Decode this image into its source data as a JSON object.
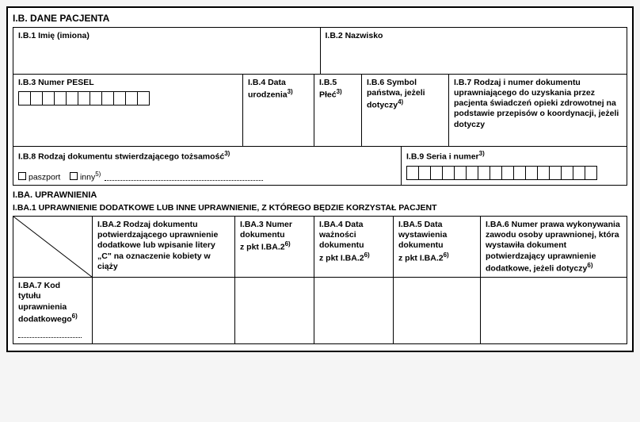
{
  "ib": {
    "title": "I.B. DANE PACJENTA",
    "b1": "I.B.1 Imię (imiona)",
    "b2": "I.B.2 Nazwisko",
    "b3": "I.B.3 Numer PESEL",
    "b4_a": "I.B.4 Data",
    "b4_b": "urodzenia",
    "b4_sup": "3)",
    "b5_a": "I.B.5",
    "b5_b": "Płeć",
    "b5_sup": "3)",
    "b6_a": "I.B.6 Symbol",
    "b6_b": "państwa, jeżeli",
    "b6_c": "dotyczy",
    "b6_sup": "4)",
    "b7": "I.B.7 Rodzaj i numer dokumentu uprawniającego do uzyskania przez pacjenta świadczeń opieki zdrowotnej na podstawie przepisów o koordynacji, jeżeli dotyczy",
    "b8": "I.B.8 Rodzaj dokumentu stwierdzającego tożsamość",
    "b8_sup": "3)",
    "b8_opt1": "paszport",
    "b8_opt2": "inny",
    "b8_opt2_sup": "5)",
    "b9": "I.B.9 Seria i numer",
    "b9_sup": "3)",
    "pesel_cells": 11,
    "seria_cells": 16
  },
  "iba": {
    "title": "I.BA. UPRAWNIENIA",
    "subtitle": "I.BA.1 UPRAWNIENIE DODATKOWE LUB INNE UPRAWNIENIE, Z KTÓREGO BĘDZIE KORZYSTAŁ PACJENT",
    "c2": "I.BA.2 Rodzaj dokumentu potwierdzającego uprawnienie dodatkowe lub wpisanie litery „C\" na oznaczenie kobiety w ciąży",
    "c3_a": "I.BA.3 Numer",
    "c3_b": "dokumentu",
    "c3_c": "z pkt I.BA.2",
    "c3_sup": "6)",
    "c4_a": "I.BA.4 Data",
    "c4_b": "ważności",
    "c4_c": "dokumentu",
    "c4_d": "z pkt I.BA.2",
    "c4_sup": "6)",
    "c5_a": "I.BA.5 Data",
    "c5_b": "wystawienia",
    "c5_c": "dokumentu",
    "c5_d": "z pkt I.BA.2",
    "c5_sup": "6)",
    "c6": "I.BA.6 Numer prawa wykonywania zawodu osoby uprawnionej, która wystawiła dokument potwierdzający uprawnienie dodatkowe, jeżeli dotyczy",
    "c6_sup": "6)",
    "c7_a": "I.BA.7 Kod",
    "c7_b": "tytułu",
    "c7_c": "uprawnienia",
    "c7_d": "dodatkowego",
    "c7_sup": "6)"
  },
  "colors": {
    "border": "#000000",
    "bg": "#ffffff"
  }
}
